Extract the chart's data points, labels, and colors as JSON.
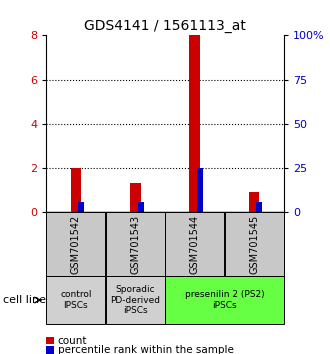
{
  "title": "GDS4141 / 1561113_at",
  "samples": [
    "GSM701542",
    "GSM701543",
    "GSM701544",
    "GSM701545"
  ],
  "count_values": [
    2.0,
    1.35,
    8.0,
    0.9
  ],
  "percentile_values": [
    5.6,
    5.6,
    25.0,
    5.6
  ],
  "ylim_left": [
    0,
    8
  ],
  "ylim_right": [
    0,
    100
  ],
  "yticks_left": [
    0,
    2,
    4,
    6,
    8
  ],
  "yticks_right": [
    0,
    25,
    50,
    75,
    100
  ],
  "ytick_labels_right": [
    "0",
    "25",
    "50",
    "75",
    "100%"
  ],
  "count_color": "#cc0000",
  "percentile_color": "#0000cc",
  "sample_box_color": "#c8c8c8",
  "groups": [
    {
      "label": "control\nIPSCs",
      "span": [
        0,
        1
      ],
      "color": "#d0d0d0"
    },
    {
      "label": "Sporadic\nPD-derived\niPSCs",
      "span": [
        1,
        2
      ],
      "color": "#d0d0d0"
    },
    {
      "label": "presenilin 2 (PS2)\niPSCs",
      "span": [
        2,
        4
      ],
      "color": "#66ff44"
    }
  ],
  "cell_line_label": "cell line",
  "legend_count_label": "count",
  "legend_percentile_label": "percentile rank within the sample",
  "title_fontsize": 10
}
